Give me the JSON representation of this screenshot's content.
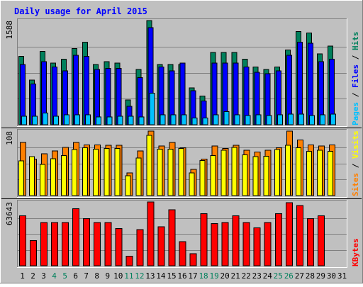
{
  "title": "Daily usage for April 2015",
  "colors": {
    "background": "#c0c0c0",
    "border_dark": "#808080",
    "border_light": "#ffffff",
    "title": "#0000ff",
    "weekday": "#000000",
    "weekend": "#00805c",
    "hits": "#00805c",
    "files": "#0000ff",
    "pages": "#00c0ff",
    "visits": "#ff8000",
    "sites": "#ffff00",
    "kbytes": "#ff0000",
    "separator": "#000000"
  },
  "chart_data": {
    "type": "bar",
    "title": "Daily usage for April 2015",
    "days": [
      "1",
      "2",
      "3",
      "4",
      "5",
      "6",
      "7",
      "8",
      "9",
      "10",
      "11",
      "12",
      "13",
      "14",
      "15",
      "16",
      "17",
      "18",
      "19",
      "20",
      "21",
      "22",
      "23",
      "24",
      "25",
      "26",
      "27",
      "28",
      "29",
      "30",
      "31"
    ],
    "weekend_days": [
      "4",
      "5",
      "11",
      "12",
      "18",
      "19",
      "25",
      "26"
    ],
    "panels": [
      {
        "name": "hits-files-pages",
        "ymax_label": "1588",
        "ymax": 1588,
        "legend": [
          {
            "text": "Pages",
            "color": "#00c0ff"
          },
          {
            "text": " / ",
            "color": "#000000"
          },
          {
            "text": "Files",
            "color": "#0000ff"
          },
          {
            "text": " / ",
            "color": "#000000"
          },
          {
            "text": "Hits",
            "color": "#00805c"
          }
        ],
        "series": [
          {
            "name": "Hits",
            "color": "#00805c",
            "values": [
              1040,
              680,
              1120,
              940,
              1000,
              1160,
              1260,
              920,
              960,
              940,
              380,
              840,
              1588,
              920,
              920,
              920,
              560,
              440,
              1100,
              1100,
              1100,
              1000,
              880,
              840,
              880,
              1140,
              1420,
              1400,
              1080,
              1200,
              0
            ]
          },
          {
            "name": "Files",
            "color": "#0000ff",
            "values": [
              920,
              620,
              960,
              880,
              820,
              1060,
              1040,
              840,
              860,
              860,
              280,
              720,
              1480,
              880,
              820,
              940,
              520,
              360,
              940,
              940,
              940,
              880,
              800,
              780,
              820,
              1060,
              1260,
              1240,
              960,
              1000,
              0
            ]
          },
          {
            "name": "Pages",
            "color": "#00c0ff",
            "values": [
              130,
              130,
              180,
              130,
              150,
              150,
              150,
              120,
              120,
              130,
              130,
              120,
              480,
              150,
              150,
              150,
              100,
              100,
              150,
              200,
              150,
              140,
              150,
              140,
              150,
              160,
              160,
              140,
              150,
              160,
              0
            ]
          }
        ]
      },
      {
        "name": "visits-sites",
        "ymax_label": "108",
        "ymax": 108,
        "legend": [
          {
            "text": "Sites",
            "color": "#ff8000"
          },
          {
            "text": " / ",
            "color": "#000000"
          },
          {
            "text": "Visits",
            "color": "#ffff00"
          }
        ],
        "series": [
          {
            "name": "Visits",
            "color": "#ff8000",
            "values": [
              89,
              61,
              70,
              75,
              81,
              89,
              85,
              85,
              84,
              84,
              38,
              75,
              108,
              83,
              89,
              80,
              44,
              61,
              83,
              79,
              84,
              76,
              73,
              76,
              80,
              108,
              93,
              85,
              83,
              85,
              0
            ]
          },
          {
            "name": "Sites",
            "color": "#ffff00",
            "values": [
              58,
              65,
              52,
              62,
              67,
              77,
              80,
              78,
              79,
              79,
              33,
              63,
              101,
              78,
              78,
              79,
              38,
              59,
              67,
              76,
              81,
              68,
              65,
              66,
              77,
              84,
              80,
              74,
              76,
              74,
              0
            ]
          }
        ]
      },
      {
        "name": "kbytes",
        "ymax_label": "63643",
        "ymax": 63643,
        "legend": [
          {
            "text": "KBytes",
            "color": "#ff0000"
          }
        ],
        "series": [
          {
            "name": "KBytes",
            "color": "#ff0000",
            "values": [
              50000,
              25000,
              43000,
              43000,
              43000,
              57000,
              47000,
              43000,
              43000,
              37000,
              9500,
              36000,
              63643,
              39000,
              56000,
              24000,
              12000,
              52000,
              42000,
              43000,
              50000,
              43000,
              38000,
              43000,
              52000,
              63000,
              60000,
              47000,
              50000,
              0,
              0
            ]
          }
        ]
      }
    ]
  }
}
